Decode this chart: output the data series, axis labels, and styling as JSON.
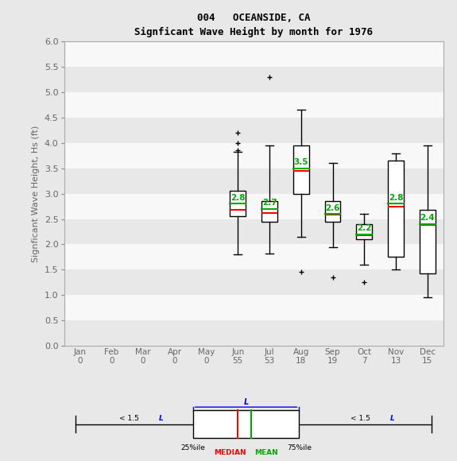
{
  "title_line1": "004   OCEANSIDE, CA",
  "title_line2": "Signficant Wave Height by month for 1976",
  "ylabel": "Signficant Wave Height, Hs (ft)",
  "months": [
    "Jan",
    "Feb",
    "Mar",
    "Apr",
    "May",
    "Jun",
    "Jul",
    "Aug",
    "Sep",
    "Oct",
    "Nov",
    "Dec"
  ],
  "counts": [
    0,
    0,
    0,
    0,
    0,
    55,
    53,
    18,
    19,
    7,
    13,
    15
  ],
  "ylim": [
    0.0,
    6.0
  ],
  "yticks": [
    0.0,
    0.5,
    1.0,
    1.5,
    2.0,
    2.5,
    3.0,
    3.5,
    4.0,
    4.5,
    5.0,
    5.5,
    6.0
  ],
  "boxes": {
    "Jun": {
      "q1": 2.55,
      "median": 2.68,
      "mean": 2.8,
      "q3": 3.05,
      "whislo": 1.8,
      "whishi": 3.82,
      "fliers": [
        4.2,
        4.0,
        3.85
      ]
    },
    "Jul": {
      "q1": 2.45,
      "median": 2.62,
      "mean": 2.7,
      "q3": 2.85,
      "whislo": 1.82,
      "whishi": 3.95,
      "fliers": [
        5.3
      ]
    },
    "Aug": {
      "q1": 3.0,
      "median": 3.45,
      "mean": 3.5,
      "q3": 3.95,
      "whislo": 2.15,
      "whishi": 4.65,
      "fliers": [
        1.45
      ]
    },
    "Sep": {
      "q1": 2.45,
      "median": 2.58,
      "mean": 2.6,
      "q3": 2.85,
      "whislo": 1.95,
      "whishi": 3.6,
      "fliers": [
        1.35
      ]
    },
    "Oct": {
      "q1": 2.1,
      "median": 2.18,
      "mean": 2.2,
      "q3": 2.4,
      "whislo": 1.6,
      "whishi": 2.6,
      "fliers": [
        1.25
      ]
    },
    "Nov": {
      "q1": 1.75,
      "median": 2.75,
      "mean": 2.8,
      "q3": 3.65,
      "whislo": 1.5,
      "whishi": 3.8,
      "fliers": []
    },
    "Dec": {
      "q1": 1.42,
      "median": 2.38,
      "mean": 2.4,
      "q3": 2.68,
      "whislo": 0.95,
      "whishi": 3.95,
      "fliers": []
    }
  },
  "active_months": [
    "Jun",
    "Jul",
    "Aug",
    "Sep",
    "Oct",
    "Nov",
    "Dec"
  ],
  "active_positions": [
    6,
    7,
    8,
    9,
    10,
    11,
    12
  ],
  "box_color": "#ffffff",
  "box_edge_color": "#000000",
  "median_color": "#ff0000",
  "mean_color": "#00aa00",
  "flier_color": "#ff0000",
  "whisker_color": "#000000",
  "cap_color": "#000000",
  "band_colors": [
    "#e8e8e8",
    "#f8f8f8"
  ],
  "bg_color": "#e8e8e8",
  "plot_bg_color": "#e8e8e8",
  "title_color": "#000000",
  "tick_label_color": "#666666"
}
